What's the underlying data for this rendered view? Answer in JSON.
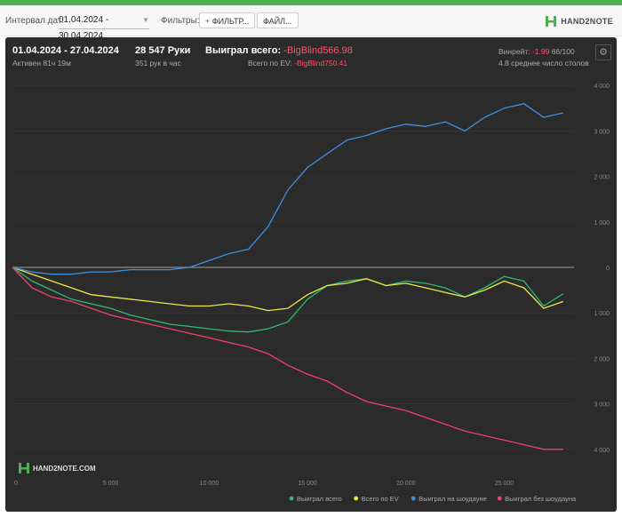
{
  "filters": {
    "interval_label": "Интервал дат:",
    "date_range": "01.04.2024 - 30.04.2024",
    "filters_label": "Фильтры:",
    "filter_button": "ФИЛЬТР...",
    "file_button": "ФАЙЛ..."
  },
  "brand": {
    "name": "HAND2NOTE"
  },
  "stats": {
    "period": "01.04.2024 - 27.04.2024",
    "active": "Активен 81ч 19м",
    "hands": "28 547 Руки",
    "hands_per_hour": "351 рук в час",
    "won_total_label": "Выиграл всего:",
    "won_total_value": "-BigBlind566.98",
    "ev_label": "Всего по EV:",
    "ev_value": "-BigBlind750.41",
    "winrate_label": "Винрейт:",
    "winrate_value": "-1.99",
    "winrate_unit": "66/100",
    "avg_tables": "4.8 среднее число столов"
  },
  "watermark": "HAND2NOTE.COM",
  "colors": {
    "green": "#2fb872",
    "yellow": "#e8e84a",
    "blue": "#3f8fe0",
    "red": "#ef3f72"
  },
  "chart_data": {
    "type": "line",
    "x_ticks": [
      "0",
      "5 000",
      "10 000",
      "15 000",
      "20 000",
      "25 000"
    ],
    "x_tick_values": [
      0,
      5000,
      10000,
      15000,
      20000,
      25000
    ],
    "y_ticks": [
      "4 000",
      "3 000",
      "2 000",
      "1 000",
      "0",
      "1 000",
      "2 000",
      "3 000",
      "4 000"
    ],
    "y_tick_values": [
      4000,
      3000,
      2000,
      1000,
      0,
      -1000,
      -2000,
      -3000,
      -4000
    ],
    "xlim": [
      0,
      28547
    ],
    "ylim": [
      -4200,
      4200
    ],
    "series": [
      {
        "name": "Выиграл всего",
        "color": "#2fb872",
        "x": [
          0,
          1000,
          2000,
          3000,
          4000,
          5000,
          6000,
          7000,
          8000,
          9000,
          10000,
          11000,
          12000,
          13000,
          14000,
          15000,
          16000,
          17000,
          18000,
          19000,
          20000,
          21000,
          22000,
          23000,
          24000,
          25000,
          26000,
          27000,
          28000
        ],
        "y": [
          0,
          -300,
          -500,
          -700,
          -800,
          -900,
          -1050,
          -1150,
          -1250,
          -1300,
          -1350,
          -1400,
          -1420,
          -1350,
          -1200,
          -700,
          -400,
          -300,
          -250,
          -400,
          -300,
          -350,
          -450,
          -650,
          -450,
          -200,
          -300,
          -850,
          -580
        ]
      },
      {
        "name": "Всего по EV",
        "color": "#e8e84a",
        "x": [
          0,
          1000,
          2000,
          3000,
          4000,
          5000,
          6000,
          7000,
          8000,
          9000,
          10000,
          11000,
          12000,
          13000,
          14000,
          15000,
          16000,
          17000,
          18000,
          19000,
          20000,
          21000,
          22000,
          23000,
          24000,
          25000,
          26000,
          27000,
          28000
        ],
        "y": [
          0,
          -150,
          -300,
          -450,
          -600,
          -650,
          -700,
          -750,
          -800,
          -850,
          -850,
          -800,
          -850,
          -950,
          -900,
          -600,
          -400,
          -350,
          -250,
          -400,
          -350,
          -450,
          -550,
          -650,
          -500,
          -300,
          -450,
          -900,
          -750
        ]
      },
      {
        "name": "Выиграл на шоудауне",
        "color": "#3f8fe0",
        "x": [
          0,
          1000,
          2000,
          3000,
          4000,
          5000,
          6000,
          7000,
          8000,
          9000,
          10000,
          11000,
          12000,
          13000,
          14000,
          15000,
          16000,
          17000,
          18000,
          19000,
          20000,
          21000,
          22000,
          23000,
          24000,
          25000,
          26000,
          27000,
          28000
        ],
        "y": [
          0,
          -100,
          -150,
          -150,
          -100,
          -100,
          -50,
          -50,
          -50,
          0,
          150,
          300,
          400,
          900,
          1700,
          2200,
          2500,
          2800,
          2900,
          3050,
          3150,
          3100,
          3200,
          3000,
          3300,
          3500,
          3600,
          3300,
          3400
        ]
      },
      {
        "name": "Выиграл без шоудауна",
        "color": "#ef3f72",
        "x": [
          0,
          1000,
          2000,
          3000,
          4000,
          5000,
          6000,
          7000,
          8000,
          9000,
          10000,
          11000,
          12000,
          13000,
          14000,
          15000,
          16000,
          17000,
          18000,
          19000,
          20000,
          21000,
          22000,
          23000,
          24000,
          25000,
          26000,
          27000,
          28000
        ],
        "y": [
          0,
          -450,
          -650,
          -750,
          -900,
          -1050,
          -1150,
          -1250,
          -1350,
          -1450,
          -1550,
          -1650,
          -1750,
          -1900,
          -2150,
          -2350,
          -2500,
          -2750,
          -2950,
          -3050,
          -3150,
          -3300,
          -3450,
          -3600,
          -3700,
          -3800,
          -3900,
          -4000,
          -4000
        ]
      }
    ]
  }
}
